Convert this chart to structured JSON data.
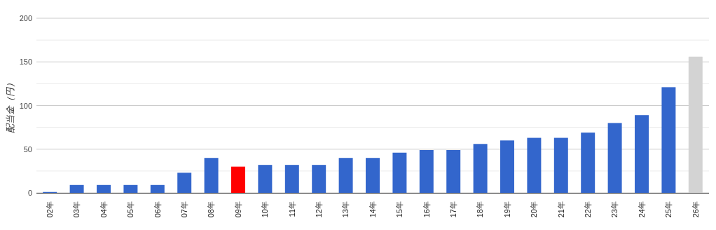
{
  "chart_data": {
    "type": "bar",
    "ylabel": "配当金（円）",
    "categories": [
      "02年",
      "03年",
      "04年",
      "05年",
      "06年",
      "07年",
      "08年",
      "09年",
      "10年",
      "11年",
      "12年",
      "13年",
      "14年",
      "15年",
      "16年",
      "17年",
      "18年",
      "19年",
      "20年",
      "21年",
      "22年",
      "23年",
      "24年",
      "25年",
      "26年"
    ],
    "values": [
      1,
      9,
      9,
      9,
      9,
      23,
      40,
      30,
      32,
      32,
      32,
      40,
      40,
      46,
      49,
      49,
      56,
      60,
      63,
      63,
      69,
      80,
      89,
      121,
      156
    ],
    "colors": [
      "#3366cc",
      "#3366cc",
      "#3366cc",
      "#3366cc",
      "#3366cc",
      "#3366cc",
      "#3366cc",
      "#ff0000",
      "#3366cc",
      "#3366cc",
      "#3366cc",
      "#3366cc",
      "#3366cc",
      "#3366cc",
      "#3366cc",
      "#3366cc",
      "#3366cc",
      "#3366cc",
      "#3366cc",
      "#3366cc",
      "#3366cc",
      "#3366cc",
      "#3366cc",
      "#3366cc",
      "#d3d3d3"
    ],
    "ylim": [
      0,
      200
    ],
    "yticks": [
      0,
      {
        "value": 25,
        "label": null
      },
      50,
      {
        "value": 75,
        "label": null
      },
      100,
      {
        "value": 125,
        "label": null
      },
      150,
      {
        "value": 175,
        "label": null
      },
      200
    ],
    "grid": true
  }
}
